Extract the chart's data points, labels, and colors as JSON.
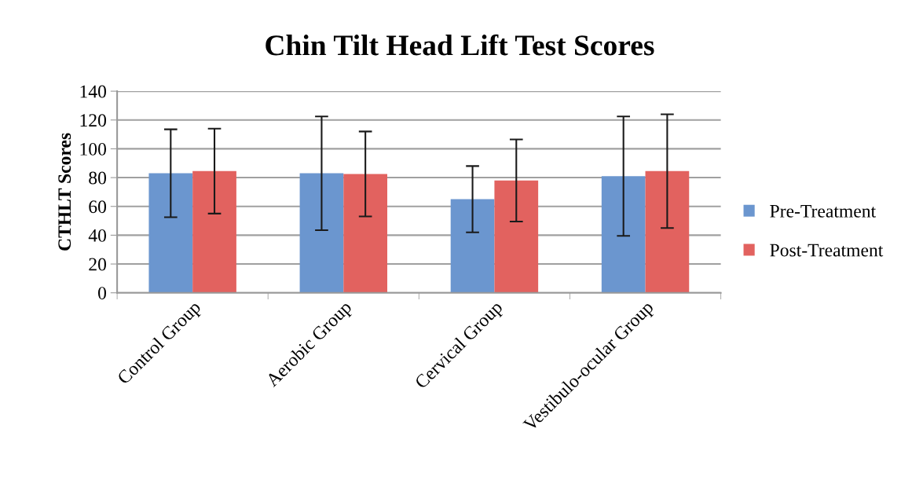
{
  "chart_data": {
    "type": "bar",
    "title": "Chin Tilt Head Lift Test Scores",
    "ylabel": "CTHLT Scores",
    "categories": [
      "Control Group",
      "Aerobic Group",
      "Cervical Group",
      "Vestibulo-ocular Group"
    ],
    "series": [
      {
        "name": "Pre-Treatment",
        "color": "#6b96cf",
        "values": [
          83,
          83,
          65,
          81
        ],
        "errors": [
          30.5,
          39.5,
          23,
          41.5
        ]
      },
      {
        "name": "Post-Treatment",
        "color": "#e2625f",
        "values": [
          84.5,
          82.5,
          78,
          84.5
        ],
        "errors": [
          29.5,
          29.5,
          28.5,
          39.5
        ]
      }
    ],
    "ylim": [
      0,
      140
    ],
    "yticks": [
      0,
      20,
      40,
      60,
      80,
      100,
      120,
      140
    ],
    "grid": "y",
    "legend": "right"
  }
}
